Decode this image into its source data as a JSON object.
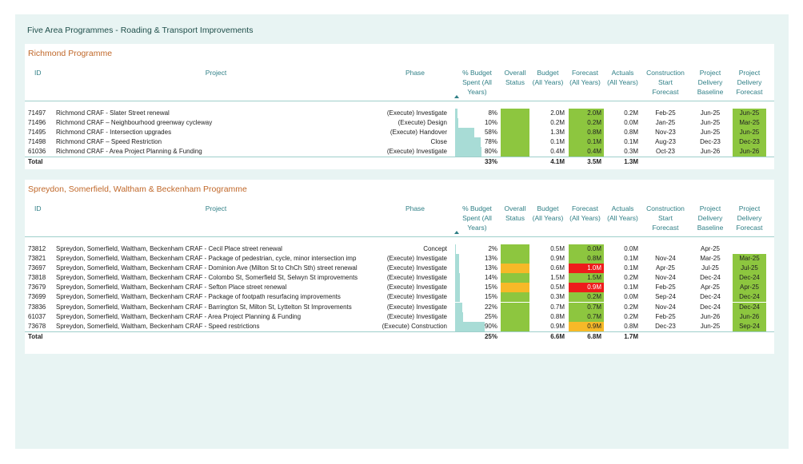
{
  "page_title": "Five Area Programmes - Roading & Transport Improvements",
  "headers": {
    "id": "ID",
    "project": "Project",
    "phase": "Phase",
    "pct": [
      "% Budget",
      "Spent (All",
      "Years)"
    ],
    "status": [
      "Overall",
      "Status"
    ],
    "budget": [
      "Budget",
      "(All Years)"
    ],
    "forecast": [
      "Forecast",
      "(All Years)"
    ],
    "actuals": [
      "Actuals",
      "(All Years)"
    ],
    "csf": [
      "Construction",
      "Start",
      "Forecast"
    ],
    "pdb": [
      "Project",
      "Delivery",
      "Baseline"
    ],
    "pdf": [
      "Project",
      "Delivery",
      "Forecast"
    ]
  },
  "colors": {
    "green": "#8dc63f",
    "amber": "#f7b928",
    "red": "#ee1c1c",
    "bar": "#a8dcd6",
    "header_text": "#2f7f86",
    "card_title": "#c0682a"
  },
  "programmes": [
    {
      "title": "Richmond Programme",
      "rows": [
        {
          "id": "71497",
          "project": "Richmond CRAF - Slater Street renewal",
          "phase": "(Execute) Investigate",
          "pct": "8%",
          "pct_value": 8,
          "status": "green",
          "budget": "2.0M",
          "forecast": "2.0M",
          "forecast_color": "green",
          "actuals": "0.2M",
          "csf": "Feb-25",
          "pdb": "Jun-25",
          "pdf": "Jun-25",
          "pdf_color": "green"
        },
        {
          "id": "71496",
          "project": "Richmond CRAF – Neighbourhood greenway cycleway",
          "phase": "(Execute) Design",
          "pct": "10%",
          "pct_value": 10,
          "status": "green",
          "budget": "0.2M",
          "forecast": "0.2M",
          "forecast_color": "green",
          "actuals": "0.0M",
          "csf": "Jan-25",
          "pdb": "Jun-25",
          "pdf": "Mar-25",
          "pdf_color": "green"
        },
        {
          "id": "71495",
          "project": "Richmond CRAF - Intersection upgrades",
          "phase": "(Execute) Handover",
          "pct": "58%",
          "pct_value": 58,
          "status": "green",
          "budget": "1.3M",
          "forecast": "0.8M",
          "forecast_color": "green",
          "actuals": "0.8M",
          "csf": "Nov-23",
          "pdb": "Jun-25",
          "pdf": "Jun-25",
          "pdf_color": "green"
        },
        {
          "id": "71498",
          "project": "Richmond CRAF – Speed Restriction",
          "phase": "Close",
          "pct": "78%",
          "pct_value": 78,
          "status": "green",
          "budget": "0.1M",
          "forecast": "0.1M",
          "forecast_color": "green",
          "actuals": "0.1M",
          "csf": "Aug-23",
          "pdb": "Dec-23",
          "pdf": "Dec-23",
          "pdf_color": "green"
        },
        {
          "id": "61036",
          "project": "Richmond CRAF - Area Project Planning & Funding",
          "phase": "(Execute) Investigate",
          "pct": "80%",
          "pct_value": 80,
          "status": "green",
          "budget": "0.4M",
          "forecast": "0.4M",
          "forecast_color": "green",
          "actuals": "0.3M",
          "csf": "Oct-23",
          "pdb": "Jun-26",
          "pdf": "Jun-26",
          "pdf_color": "green"
        }
      ],
      "total": {
        "label": "Total",
        "pct": "33%",
        "budget": "4.1M",
        "forecast": "3.5M",
        "actuals": "1.3M"
      }
    },
    {
      "title": "Spreydon, Somerfield, Waltham & Beckenham Programme",
      "rows": [
        {
          "id": "73812",
          "project": "Spreydon, Somerfield, Waltham, Beckenham CRAF - Cecil Place street renewal",
          "phase": "Concept",
          "pct": "2%",
          "pct_value": 2,
          "status": "green",
          "budget": "0.5M",
          "forecast": "0.0M",
          "forecast_color": "green",
          "actuals": "0.0M",
          "csf": "",
          "pdb": "Apr-25",
          "pdf": "",
          "pdf_color": ""
        },
        {
          "id": "73821",
          "project": "Spreydon, Somerfield, Waltham, Beckenham CRAF - Package of pedestrian, cycle, minor intersection imp",
          "phase": "(Execute) Investigate",
          "pct": "13%",
          "pct_value": 13,
          "status": "green",
          "budget": "0.9M",
          "forecast": "0.8M",
          "forecast_color": "green",
          "actuals": "0.1M",
          "csf": "Nov-24",
          "pdb": "Mar-25",
          "pdf": "Mar-25",
          "pdf_color": "green"
        },
        {
          "id": "73697",
          "project": "Spreydon, Somerfield, Waltham, Beckenham CRAF - Dominion Ave (Milton St to ChCh Sth) street renewal",
          "phase": "(Execute) Investigate",
          "pct": "13%",
          "pct_value": 13,
          "status": "amber",
          "budget": "0.6M",
          "forecast": "1.0M",
          "forecast_color": "red",
          "actuals": "0.1M",
          "csf": "Apr-25",
          "pdb": "Jul-25",
          "pdf": "Jul-25",
          "pdf_color": "green"
        },
        {
          "id": "73818",
          "project": "Spreydon, Somerfield, Waltham, Beckenham CRAF - Colombo St, Somerfield St, Selwyn St improvements",
          "phase": "(Execute) Investigate",
          "pct": "14%",
          "pct_value": 14,
          "status": "green",
          "budget": "1.5M",
          "forecast": "1.5M",
          "forecast_color": "green",
          "actuals": "0.2M",
          "csf": "Nov-24",
          "pdb": "Dec-24",
          "pdf": "Dec-24",
          "pdf_color": "green"
        },
        {
          "id": "73679",
          "project": "Spreydon, Somerfield, Waltham, Beckenham CRAF - Sefton Place street renewal",
          "phase": "(Execute) Investigate",
          "pct": "15%",
          "pct_value": 15,
          "status": "amber",
          "budget": "0.5M",
          "forecast": "0.9M",
          "forecast_color": "red",
          "actuals": "0.1M",
          "csf": "Feb-25",
          "pdb": "Apr-25",
          "pdf": "Apr-25",
          "pdf_color": "green"
        },
        {
          "id": "73699",
          "project": "Spreydon, Somerfield, Waltham, Beckenham CRAF - Package of footpath resurfacing improvements",
          "phase": "(Execute) Investigate",
          "pct": "15%",
          "pct_value": 15,
          "status": "green",
          "budget": "0.3M",
          "forecast": "0.2M",
          "forecast_color": "green",
          "actuals": "0.0M",
          "csf": "Sep-24",
          "pdb": "Dec-24",
          "pdf": "Dec-24",
          "pdf_color": "green"
        },
        {
          "id": "73836",
          "project": "Spreydon, Somerfield, Waltham, Beckenham CRAF - Barrington St, Milton St, Lyttelton St Improvements",
          "phase": "(Execute) Investigate",
          "pct": "22%",
          "pct_value": 22,
          "status": "green",
          "budget": "0.7M",
          "forecast": "0.7M",
          "forecast_color": "green",
          "actuals": "0.2M",
          "csf": "Nov-24",
          "pdb": "Dec-24",
          "pdf": "Dec-24",
          "pdf_color": "green"
        },
        {
          "id": "61037",
          "project": "Spreydon, Somerfield, Waltham, Beckenham CRAF - Area Project Planning & Funding",
          "phase": "(Execute) Investigate",
          "pct": "25%",
          "pct_value": 25,
          "status": "green",
          "budget": "0.8M",
          "forecast": "0.7M",
          "forecast_color": "green",
          "actuals": "0.2M",
          "csf": "Feb-25",
          "pdb": "Jun-26",
          "pdf": "Jun-26",
          "pdf_color": "green"
        },
        {
          "id": "73678",
          "project": "Spreydon, Somerfield, Waltham, Beckenham CRAF - Speed restrictions",
          "phase": "(Execute) Construction",
          "pct": "90%",
          "pct_value": 90,
          "status": "green",
          "budget": "0.9M",
          "forecast": "0.9M",
          "forecast_color": "amber",
          "actuals": "0.8M",
          "csf": "Dec-23",
          "pdb": "Jun-25",
          "pdf": "Sep-24",
          "pdf_color": "green"
        }
      ],
      "total": {
        "label": "Total",
        "pct": "25%",
        "budget": "6.6M",
        "forecast": "6.8M",
        "actuals": "1.7M"
      }
    }
  ]
}
